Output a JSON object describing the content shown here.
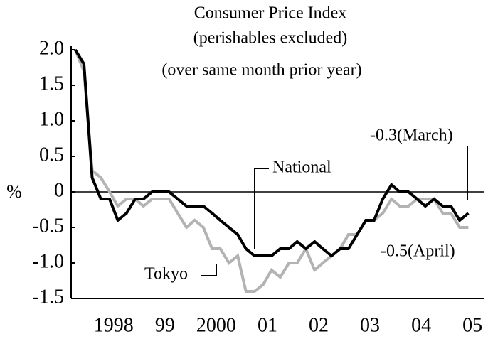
{
  "chart_data": {
    "type": "line",
    "title": "Consumer Price Index",
    "subtitle": [
      "(perishables excluded)",
      "(over same month prior year)"
    ],
    "y_label": "%",
    "x": [
      1997.75,
      1997.92,
      1998.08,
      1998.25,
      1998.42,
      1998.58,
      1998.75,
      1998.92,
      1999.08,
      1999.25,
      1999.42,
      1999.58,
      1999.75,
      1999.92,
      2000.08,
      2000.25,
      2000.42,
      2000.58,
      2000.75,
      2000.92,
      2001.08,
      2001.25,
      2001.42,
      2001.58,
      2001.75,
      2001.92,
      2002.08,
      2002.25,
      2002.42,
      2002.58,
      2002.75,
      2002.92,
      2003.08,
      2003.25,
      2003.42,
      2003.58,
      2003.75,
      2003.92,
      2004.08,
      2004.25,
      2004.42,
      2004.58,
      2004.75,
      2004.92,
      2005.08,
      2005.25,
      2005.42
    ],
    "series": [
      {
        "name": "Tokyo",
        "color": "#b3b3b3",
        "values": [
          2.0,
          1.7,
          0.3,
          0.2,
          0.0,
          -0.2,
          -0.1,
          -0.1,
          -0.2,
          -0.1,
          -0.1,
          -0.1,
          -0.3,
          -0.5,
          -0.4,
          -0.5,
          -0.8,
          -0.8,
          -1.0,
          -0.9,
          -1.4,
          -1.4,
          -1.3,
          -1.1,
          -1.2,
          -1.0,
          -1.0,
          -0.8,
          -1.1,
          -1.0,
          -0.9,
          -0.8,
          -0.6,
          -0.6,
          -0.4,
          -0.4,
          -0.3,
          -0.1,
          -0.2,
          -0.2,
          -0.1,
          -0.1,
          -0.1,
          -0.3,
          -0.3,
          -0.5,
          -0.5
        ]
      },
      {
        "name": "National",
        "color": "#000000",
        "values": [
          2.0,
          1.8,
          0.2,
          -0.1,
          -0.1,
          -0.4,
          -0.3,
          -0.1,
          -0.1,
          0,
          0,
          0,
          -0.1,
          -0.2,
          -0.2,
          -0.2,
          -0.3,
          -0.4,
          -0.5,
          -0.6,
          -0.8,
          -0.9,
          -0.9,
          -0.9,
          -0.8,
          -0.8,
          -0.7,
          -0.8,
          -0.7,
          -0.8,
          -0.9,
          -0.8,
          -0.8,
          -0.6,
          -0.4,
          -0.4,
          -0.1,
          0.1,
          0,
          0,
          -0.1,
          -0.2,
          -0.1,
          -0.2,
          -0.2,
          -0.4,
          -0.3
        ]
      }
    ],
    "annotations": [
      "-0.3(March)",
      "-0.5(April)"
    ],
    "xlim": [
      1997.67,
      2005.72
    ],
    "xticks": [
      {
        "value": 1998.5,
        "label": "1998"
      },
      {
        "value": 1999.5,
        "label": "99"
      },
      {
        "value": 2000.5,
        "label": "2000"
      },
      {
        "value": 2001.5,
        "label": "01"
      },
      {
        "value": 2002.5,
        "label": "02"
      },
      {
        "value": 2003.5,
        "label": "03"
      },
      {
        "value": 2004.5,
        "label": "04"
      },
      {
        "value": 2005.5,
        "label": "05"
      }
    ],
    "ylim": [
      -1.5,
      2.0
    ],
    "yticks": [
      {
        "value": 2,
        "label": "2.0"
      },
      1.5,
      {
        "value": 1,
        "label": "1.0"
      },
      0.5,
      0,
      -0.5,
      {
        "value": -1,
        "label": "-1.0"
      },
      -1.5
    ],
    "zero_line": true,
    "grid": false
  }
}
